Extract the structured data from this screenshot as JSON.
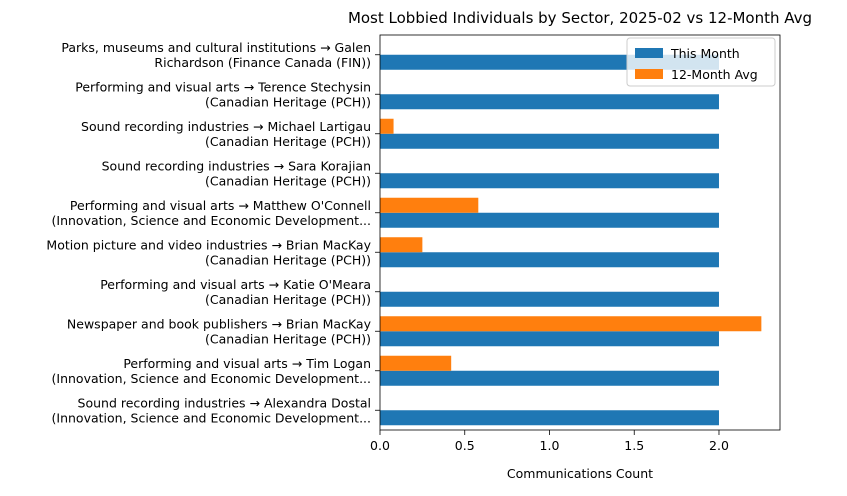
{
  "chart_data": {
    "type": "bar",
    "orientation": "horizontal",
    "title": "Most Lobbied Individuals by Sector, 2025-02 vs 12-Month Avg",
    "xlabel": "Communications Count",
    "ylabel": "",
    "xlim": [
      0,
      2.36
    ],
    "xticks": [
      "0.0",
      "0.5",
      "1.0",
      "1.5",
      "2.0"
    ],
    "categories": [
      [
        "Parks, museums and cultural institutions → Galen",
        "Richardson (Finance Canada (FIN))"
      ],
      [
        "Performing and visual arts → Terence Stechysin",
        "(Canadian Heritage (PCH))"
      ],
      [
        "Sound recording industries → Michael Lartigau",
        "(Canadian Heritage (PCH))"
      ],
      [
        "Sound recording industries → Sara Korajian",
        "(Canadian Heritage (PCH))"
      ],
      [
        "Performing and visual arts → Matthew O'Connell",
        "(Innovation, Science and Economic Development..."
      ],
      [
        "Motion picture and video industries → Brian MacKay",
        "(Canadian Heritage (PCH))"
      ],
      [
        "Performing and visual arts → Katie O'Meara",
        "(Canadian Heritage (PCH))"
      ],
      [
        "Newspaper and book publishers → Brian MacKay",
        "(Canadian Heritage (PCH))"
      ],
      [
        "Performing and visual arts → Tim Logan",
        "(Innovation, Science and Economic Development..."
      ],
      [
        "Sound recording industries → Alexandra Dostal",
        "(Innovation, Science and Economic Development..."
      ]
    ],
    "series": [
      {
        "name": "This Month",
        "color": "#1f77b4",
        "values": [
          2,
          2,
          2,
          2,
          2,
          2,
          2,
          2,
          2,
          2
        ]
      },
      {
        "name": "12-Month Avg",
        "color": "#ff7f0e",
        "values": [
          0,
          0,
          0.08,
          0,
          0.58,
          0.25,
          0,
          2.25,
          0.42,
          0
        ]
      }
    ],
    "legend": "top-right",
    "grid": false
  }
}
